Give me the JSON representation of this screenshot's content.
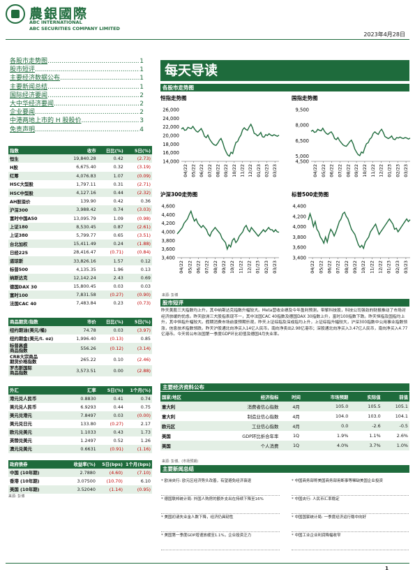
{
  "header": {
    "brand_cn": "農銀國際",
    "brand_en1": "ABC INTERNATIONAL",
    "brand_en2": "ABC SECURITIES COMPANY LIMITED",
    "date": "2023年4月28日"
  },
  "toc": [
    {
      "t": "各股市走势图",
      "p": "1"
    },
    {
      "t": "股市短评",
      "p": "1"
    },
    {
      "t": "主要经济数据公布",
      "p": "1"
    },
    {
      "t": "主要新闻总结",
      "p": "1"
    },
    {
      "t": "国际经济要闻",
      "p": "2"
    },
    {
      "t": "大中华经济要闻",
      "p": "2"
    },
    {
      "t": "企业要闻",
      "p": "2"
    },
    {
      "t": "中港两地上市的 H 股股价",
      "p": "3"
    },
    {
      "t": "免责声明",
      "p": "4"
    }
  ],
  "title": "每天导读",
  "charts_section": "各股市走势图",
  "charts": [
    {
      "title": "恒指走势图",
      "ticks": [
        "26,000",
        "24,000",
        "22,000",
        "20,000",
        "18,000",
        "16,000",
        "14,000"
      ],
      "ymin": 14000,
      "ymax": 26000,
      "values": [
        21500,
        21800,
        21200,
        21300,
        21900,
        21700,
        21600,
        22100,
        21500,
        21000,
        20800,
        21200,
        21600,
        20900,
        19800,
        19500,
        20100,
        19200,
        18600,
        18100,
        17800,
        17700,
        18200,
        18900,
        19300,
        18400,
        17100,
        16200,
        15500,
        15200,
        16100,
        15800,
        17200,
        18400,
        18600,
        19500,
        20100,
        21300,
        21800,
        21400,
        21200,
        22000,
        22600,
        21800,
        20500,
        20300,
        19900,
        20200,
        20700,
        19700,
        19600,
        20200,
        20000,
        20400,
        20100,
        19900,
        20200,
        20000,
        19800,
        20100
      ]
    },
    {
      "title": "国指走势图",
      "ticks": [
        "9,500",
        "8,000",
        "6,500",
        "5,000",
        "4,500"
      ],
      "ymin": 4500,
      "ymax": 9500,
      "values": [
        7400,
        7500,
        7300,
        7350,
        7600,
        7500,
        7450,
        7700,
        7400,
        7200,
        7100,
        7250,
        7350,
        7100,
        6700,
        6600,
        6800,
        6500,
        6300,
        6100,
        6000,
        5950,
        6150,
        6400,
        6550,
        6200,
        5700,
        5400,
        5150,
        5050,
        5400,
        5300,
        5800,
        6200,
        6300,
        6650,
        6800,
        7200,
        7350,
        7200,
        7100,
        7400,
        7600,
        7300,
        6900,
        6800,
        6700,
        6800,
        6950,
        6650,
        6600,
        6800,
        6750,
        6850,
        6750,
        6700,
        6800,
        6750,
        6650,
        6750
      ]
    },
    {
      "title": "沪深300走势图",
      "ticks": [
        "4,600",
        "4,400",
        "4,200",
        "4,000",
        "3,800",
        "3,600",
        "3,400"
      ],
      "ymin": 3400,
      "ymax": 4600,
      "values": [
        3950,
        4000,
        4050,
        4100,
        4200,
        4250,
        4300,
        4400,
        4480,
        4350,
        4250,
        4300,
        4200,
        4150,
        4100,
        4150,
        4100,
        4050,
        3950,
        3900,
        4000,
        4050,
        4100,
        4050,
        4000,
        3950,
        3850,
        3800,
        3750,
        3600,
        3700,
        3650,
        3800,
        3850,
        3750,
        3800,
        3900,
        3950,
        4000,
        4100,
        4150,
        4050,
        4000,
        4100,
        4050,
        4000,
        3950,
        3900,
        3950,
        4000,
        4050,
        4000,
        4050,
        4100,
        4050,
        4050,
        4000,
        4050,
        4000,
        3990
      ]
    },
    {
      "title": "标普500走势图",
      "ticks": [
        "4,400",
        "4,200",
        "4,000",
        "3,800",
        "3,600",
        "3,400"
      ],
      "ymin": 3400,
      "ymax": 4400,
      "values": [
        4130,
        4250,
        4150,
        4000,
        4100,
        3950,
        3900,
        3800,
        3750,
        3680,
        3800,
        3700,
        3850,
        3950,
        3900,
        3820,
        3900,
        4000,
        4100,
        4150,
        4250,
        4280,
        4200,
        4150,
        4050,
        3950,
        3900,
        3850,
        3750,
        3650,
        3600,
        3640,
        3580,
        3700,
        3750,
        3800,
        3900,
        3950,
        4000,
        4050,
        3950,
        3850,
        3900,
        3950,
        4000,
        4050,
        4100,
        4150,
        4100,
        4050,
        3950,
        3970,
        3900,
        3950,
        4000,
        4050,
        4100,
        4150,
        4100,
        4135
      ]
    }
  ],
  "xlabels": [
    "04/22",
    "05/22",
    "06/22",
    "07/22",
    "08/22",
    "09/22",
    "10/22",
    "11/22",
    "12/22",
    "01/23",
    "02/23",
    "03/23"
  ],
  "chart_source": "来源: 彭博",
  "index_table": {
    "headers": [
      "指数",
      "收市",
      "日比(%)",
      "5日(%)"
    ],
    "rows": [
      [
        "恒生",
        "19,840.28",
        "0.42",
        "(2.73)"
      ],
      [
        "H股",
        "6,675.40",
        "0.32",
        "(3.19)"
      ],
      [
        "红筹",
        "4,076.83",
        "1.07",
        "(0.09)"
      ],
      [
        "HSC大型股",
        "1,797.11",
        "0.31",
        "(2.71)"
      ],
      [
        "HSC中型股",
        "4,127.16",
        "0.44",
        "(2.32)"
      ],
      [
        "AH股溢价",
        "139.90",
        "0.42",
        "0.36"
      ],
      [
        "沪深300",
        "3,988.42",
        "0.74",
        "(3.03)"
      ],
      [
        "富时中国A50",
        "13,095.79",
        "1.09",
        "(0.98)"
      ],
      [
        "上证180",
        "8,530.45",
        "0.87",
        "(2.61)"
      ],
      [
        "上证380",
        "5,799.77",
        "0.65",
        "(3.51)"
      ],
      [
        "台北加权",
        "15,411.49",
        "0.24",
        "(1.88)"
      ],
      [
        "日经225",
        "28,416.47",
        "(0.71)",
        "(0.84)"
      ],
      [
        "道琼斯",
        "33,826.16",
        "1.57",
        "0.12"
      ],
      [
        "标普500",
        "4,135.35",
        "1.96",
        "0.13"
      ],
      [
        "纳斯达克",
        "12,142.24",
        "2.43",
        "0.69"
      ],
      [
        "德国DAX 30",
        "15,800.45",
        "0.03",
        "0.03"
      ],
      [
        "富时100",
        "7,831.58",
        "(0.27)",
        "(0.90)"
      ],
      [
        "法国CAC 40",
        "7,483.84",
        "0.23",
        "(0.73)"
      ]
    ]
  },
  "commodity_table": {
    "headers": [
      "商品期货/指数",
      "市价",
      "日比(%)",
      "5日(%)"
    ],
    "rows": [
      [
        "纽约期油(美元/桶)",
        "74.78",
        "0.03",
        "(3.97)"
      ],
      [
        "纽约期金(美元/t. oz)",
        "1,996.40",
        "(0.13)",
        "0.85"
      ],
      [
        "标普高盛\n商品指数",
        "556.26",
        "(0.12)",
        "(3.14)"
      ],
      [
        "CRB大宗商品\n期货价格指数",
        "265.22",
        "0.10",
        "(2.46)"
      ],
      [
        "罗杰斯国际\n商品指数",
        "3,573.51",
        "0.00",
        "(2.88)"
      ]
    ]
  },
  "fx_table": {
    "headers": [
      "外汇",
      "汇率",
      "5日(%)",
      "1个月(%)"
    ],
    "rows": [
      [
        "港元兑人民币",
        "0.8830",
        "0.41",
        "0.74"
      ],
      [
        "美元兑人民币",
        "6.9293",
        "0.44",
        "0.75"
      ],
      [
        "美元兑港元",
        "7.8497",
        "0.03",
        "(0.00)"
      ],
      [
        "美元兑日元",
        "133.80",
        "(0.27)",
        "2.17"
      ],
      [
        "欧元兑美元",
        "1.1033",
        "0.43",
        "1.73"
      ],
      [
        "英镑兑美元",
        "1.2497",
        "0.52",
        "1.26"
      ],
      [
        "澳元兑美元",
        "0.6631",
        "(0.91)",
        "(1.16)"
      ]
    ]
  },
  "bond_table": {
    "headers": [
      "政府债券",
      "收益率(%)",
      "5日(bps)",
      "1个月(bps)"
    ],
    "rows": [
      [
        "中国 (10年期)",
        "2.7880",
        "(4.60)",
        "(7.10)"
      ],
      [
        "香港 (10年期)",
        "3.07500",
        "(10.70)",
        "6.10"
      ],
      [
        "美国 (10年期)",
        "3.52040",
        "(1.14)",
        "(0.95)"
      ]
    ]
  },
  "bond_source": "来源: 彭博",
  "market_comment": {
    "title": "股市短评",
    "text": "昨天美股三大指数均上升，其中纳斯达克指数升幅较大。Meta营收业绩及今年盈利预测，带挈科技股，科技公司强劲的财报推动了市场对经济放缓的忧虑。昨天欧洲三大股指表现不一，其中法国CAC 40指数及德国DAX 30指数上升，富时100指数下跌。昨天恒指及国指均上升，其中恒指升幅较大。假期消费市场前景预期乐观，昨天上证综指及深成指均上升，上证综指升幅较大，沪深300指数中公用事业指数领涨，信息技术指数领跌。昨天沪股通北向净买入14亿人民币，南向净卖出2.98亿港币；深股通北向净买入3.47亿人民币，南向净买入4.77亿港币。今天将公布法国第一季度GDP环比初值及德国4月失业率。"
  },
  "econ": {
    "title": "主要经济资料公布",
    "headers": [
      "国家/地区",
      "经济指标",
      "时间",
      "市场预期",
      "实际值",
      "前值"
    ],
    "rows": [
      [
        "意大利",
        "消费者信心指数",
        "4月",
        "105.0",
        "105.5",
        "105.1"
      ],
      [
        "意大利",
        "制造业信心指数",
        "4月",
        "104.0",
        "103.0",
        "104.1"
      ],
      [
        "欧元区",
        "工业信心指数",
        "4月",
        "0.0",
        "-2.6",
        "-0.5"
      ],
      [
        "美国",
        "GDP环比折合年率",
        "1Q",
        "1.9%",
        "1.1%",
        "2.6%"
      ],
      [
        "美国",
        "个人消费",
        "1Q",
        "4.0%",
        "3.7%",
        "1.0%"
      ]
    ],
    "source": "来源: 彭博、(市场预期)"
  },
  "news": {
    "title": "主要新闻总结",
    "left": [
      "欧洲央行: 欧元区经济势头改善，有望避免经济衰退",
      "德国联邦统计局: 外国人购房的额外支出在持续下降至16%",
      "美国初请失业金人数下降，经济仍具韧性",
      "美国第一季度GDP增速放缓至1.1%，企业投资乏力"
    ],
    "right": [
      "中国商务部称美国商务部用断事等稀缺美国企业投资",
      "中国央行: 人民币汇率稳定",
      "中国国家统计局: 一季度经济运行稳中向好",
      "中国工业企业利润降幅收窄"
    ]
  },
  "page_number": "1"
}
